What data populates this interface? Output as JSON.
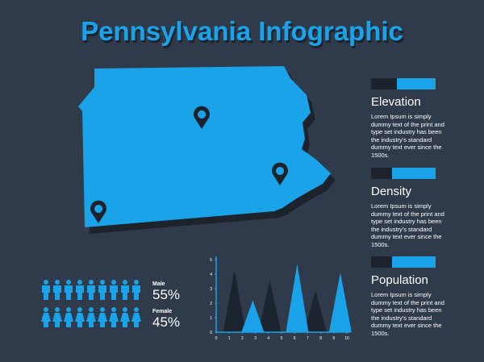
{
  "header": {
    "title": "Pennsylvania Infographic"
  },
  "sections": [
    {
      "title": "Elevation",
      "text": "Lorem Ipsum is simply dummy text of the print and type set industry has been the industry's standard dummy text ever since the 1500s."
    },
    {
      "title": "Density",
      "text": "Lorem Ipsum is simply dummy text of the print and type set industry has been the industry's standard dummy text ever since the 1500s."
    },
    {
      "title": "Population",
      "text": "Lorem Ipsum is simply dummy text of the print and type set industry has been the industry's standard dummy text ever since the 1500s."
    }
  ],
  "gender": [
    {
      "label": "Male",
      "percent": "55%"
    },
    {
      "label": "Female",
      "percent": "45%"
    }
  ],
  "chart_data": {
    "type": "triangle",
    "xlim": [
      0,
      10
    ],
    "ylim": [
      0,
      5
    ],
    "xticks": [
      0,
      1,
      2,
      3,
      4,
      5,
      6,
      7,
      8,
      9,
      10
    ],
    "yticks": [
      0,
      1,
      2,
      3,
      4,
      5
    ],
    "series": [
      {
        "color": "#1c2430",
        "x": [
          1.4,
          4.1,
          7.6
        ],
        "values": [
          4.3,
          3.6,
          2.9
        ]
      },
      {
        "color": "#1aa3e8",
        "x": [
          2.8,
          6.2,
          9.5
        ],
        "values": [
          2.2,
          4.7,
          4.1
        ]
      }
    ]
  }
}
